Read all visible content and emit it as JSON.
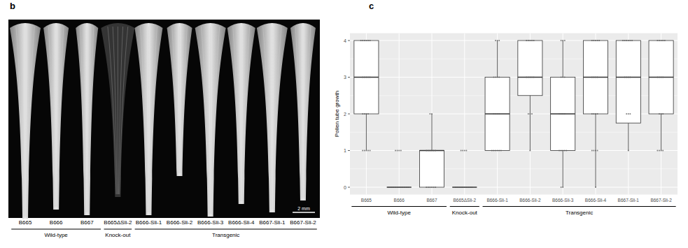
{
  "panel_b": {
    "panel_label": "b",
    "labels": [
      "B665",
      "B666",
      "B667",
      "B665ΔSli-2",
      "B666-Sli-1",
      "B666-Sli-2",
      "B666-Sli-3",
      "B666-Sli-4",
      "B667-Sli-1",
      "B667-Sli-2"
    ],
    "groups": [
      {
        "label": "Wild-type",
        "members": [
          "B665",
          "B666",
          "B667"
        ]
      },
      {
        "label": "Knock-out",
        "members": [
          "B665ΔSli-2"
        ]
      },
      {
        "label": "Transgenic",
        "members": [
          "B666-Sli-1",
          "B666-Sli-2",
          "B666-Sli-3",
          "B666-Sli-4",
          "B667-Sli-1",
          "B667-Sli-2"
        ]
      }
    ],
    "scale_bar": "2 mm"
  },
  "chart_data": {
    "type": "box",
    "panel_label": "c",
    "y_label": "Pollen tube growth",
    "categories": [
      "B665",
      "B666",
      "B667",
      "B665ΔSli-2",
      "B666-Sli-1",
      "B666-Sli-2",
      "B666-Sli-3",
      "B666-Sli-4",
      "B667-Sli-1",
      "B667-Sli-2"
    ],
    "whisker_low": [
      1,
      0,
      0,
      0,
      1,
      1,
      0,
      0,
      1,
      1
    ],
    "q1": [
      2,
      0,
      0,
      0,
      1,
      2.5,
      1,
      2,
      1.75,
      2
    ],
    "median": [
      3,
      0,
      1,
      0,
      2,
      3,
      2,
      3,
      3,
      3
    ],
    "q3": [
      4,
      0,
      1,
      0,
      3,
      4,
      3,
      4,
      4,
      4
    ],
    "whisker_high": [
      4,
      0,
      2,
      0,
      4,
      4,
      4,
      4,
      4,
      4
    ],
    "points": [
      [
        1,
        1,
        1,
        1,
        1,
        2,
        2,
        2,
        2,
        3,
        3,
        3,
        3,
        3,
        4,
        4,
        4,
        4,
        4,
        4
      ],
      [
        0,
        0,
        0,
        0,
        0,
        0,
        0,
        0,
        0,
        0,
        0,
        0,
        1,
        1,
        1,
        1
      ],
      [
        0,
        0,
        0,
        0,
        0,
        0,
        1,
        1,
        1,
        1,
        1,
        1,
        2,
        2
      ],
      [
        0,
        0,
        0,
        0,
        0,
        0,
        0,
        0,
        0,
        0,
        1,
        1,
        1,
        1
      ],
      [
        1,
        1,
        1,
        1,
        1,
        1,
        2,
        2,
        2,
        2,
        3,
        3,
        3,
        3,
        4,
        4,
        4
      ],
      [
        1,
        2,
        2,
        2,
        3,
        3,
        3,
        3,
        3,
        4,
        4,
        4,
        4,
        4
      ],
      [
        0,
        0,
        1,
        1,
        1,
        1,
        1,
        2,
        2,
        2,
        2,
        3,
        3,
        3,
        4,
        4,
        4
      ],
      [
        0,
        1,
        1,
        1,
        1,
        2,
        2,
        2,
        2,
        3,
        3,
        3,
        3,
        4,
        4,
        4,
        4,
        4
      ],
      [
        1,
        2,
        2,
        2,
        3,
        3,
        3,
        3,
        4,
        4,
        4,
        4,
        4,
        4
      ],
      [
        1,
        1,
        1,
        1,
        2,
        2,
        2,
        3,
        3,
        3,
        3,
        4,
        4,
        4,
        4,
        4
      ]
    ],
    "ylim": [
      -0.2,
      4.2
    ],
    "yticks": [
      0,
      1,
      2,
      3,
      4
    ],
    "grid": true,
    "groups": [
      {
        "label": "Wild-type",
        "members": [
          "B665",
          "B666",
          "B667"
        ]
      },
      {
        "label": "Knock-out",
        "members": [
          "B665ΔSli-2"
        ]
      },
      {
        "label": "Transgenic",
        "members": [
          "B666-Sli-1",
          "B666-Sli-2",
          "B666-Sli-3",
          "B666-Sli-4",
          "B667-Sli-1",
          "B667-Sli-2"
        ]
      }
    ]
  }
}
